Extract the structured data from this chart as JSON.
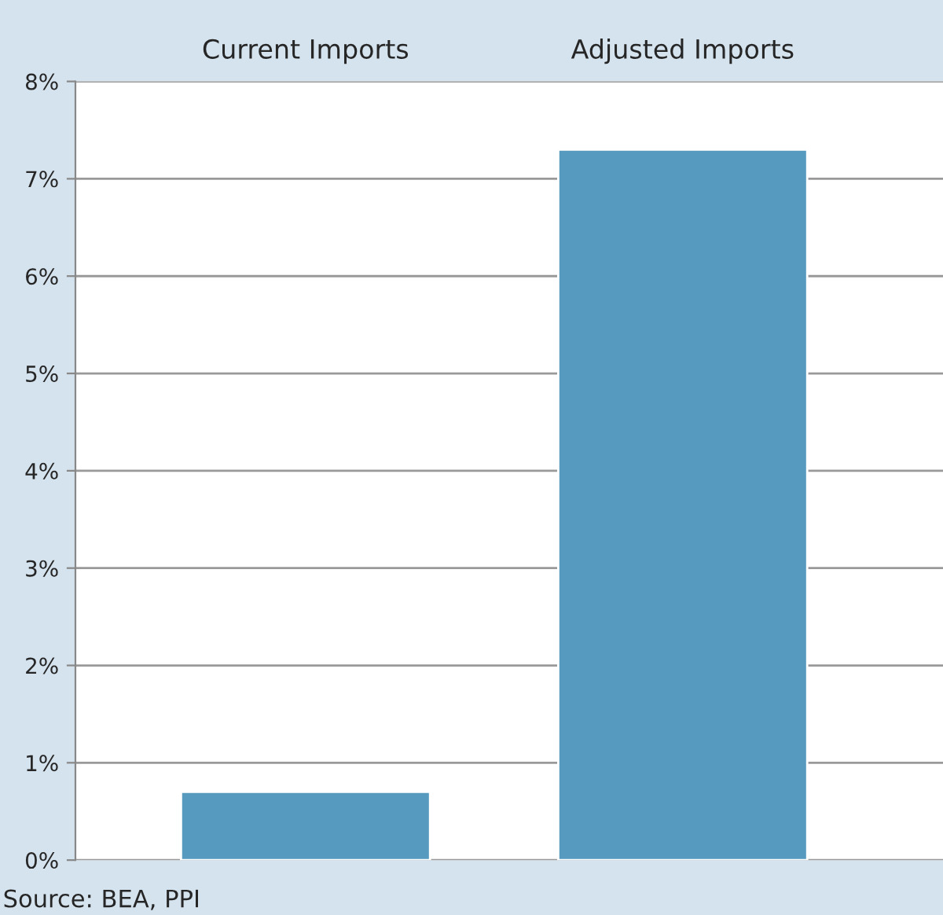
{
  "chart_data": {
    "type": "bar",
    "categories": [
      "Current Imports",
      "Adjusted Imports"
    ],
    "values": [
      0.7,
      7.3
    ],
    "color": "#569bbf",
    "ylim": [
      0,
      8
    ],
    "yticks": [
      {
        "value": 0,
        "label": "0%"
      },
      {
        "value": 1,
        "label": "1%"
      },
      {
        "value": 2,
        "label": "2%"
      },
      {
        "value": 3,
        "label": "3%"
      },
      {
        "value": 4,
        "label": "4%"
      },
      {
        "value": 5,
        "label": "5%"
      },
      {
        "value": 6,
        "label": "6%"
      },
      {
        "value": 7,
        "label": "7%"
      },
      {
        "value": 8,
        "label": "8%"
      }
    ],
    "grid": "y",
    "annotations": [
      "Source: BEA, PPI"
    ]
  }
}
